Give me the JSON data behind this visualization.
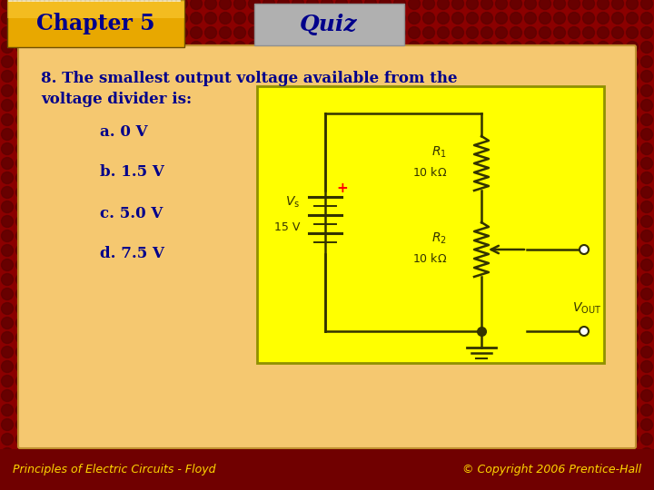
{
  "title": "Quiz",
  "chapter": "Chapter 5",
  "question": "8. The smallest output voltage available from the\nvoltage divider is:",
  "answers": [
    "a. 0 V",
    "b. 1.5 V",
    "c. 5.0 V",
    "d. 7.5 V"
  ],
  "footer_left": "Principles of Electric Circuits - Floyd",
  "footer_right": "© Copyright 2006 Prentice-Hall",
  "bg_dark_red": "#8B0000",
  "bg_light_panel": "#F5C870",
  "chapter_box_gradient_left": "#DAA520",
  "chapter_box_gradient_right": "#FFD700",
  "quiz_box_color": "#A8A8A8",
  "circuit_box_color": "#FFFF00",
  "text_blue": "#00008B",
  "text_dark": "#333300",
  "text_white": "#FFFFFF",
  "text_yellow": "#FFD700",
  "footer_bg": "#6B0000"
}
